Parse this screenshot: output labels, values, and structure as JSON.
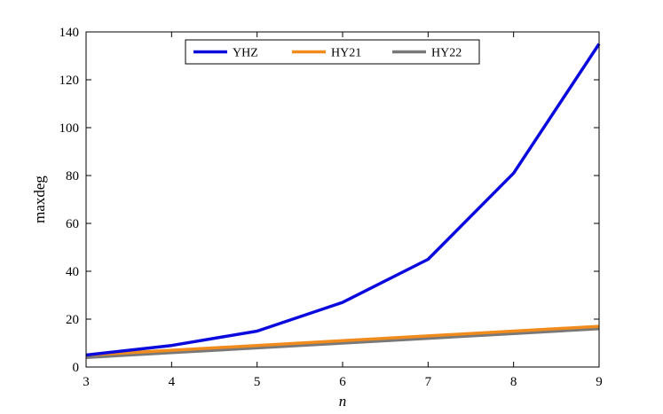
{
  "chart_data": {
    "type": "line",
    "xlabel": "n",
    "ylabel": "maxdeg",
    "xlim": [
      3,
      9
    ],
    "ylim": [
      0,
      140
    ],
    "xticks": [
      3,
      4,
      5,
      6,
      7,
      8,
      9
    ],
    "yticks": [
      0,
      20,
      40,
      60,
      80,
      100,
      120,
      140
    ],
    "grid": false,
    "legend_position": "top-center",
    "x": [
      3,
      4,
      5,
      6,
      7,
      8,
      9
    ],
    "series": [
      {
        "name": "YHZ",
        "color": "#0a0adc",
        "values": [
          5,
          9,
          15,
          27,
          45,
          81,
          135
        ]
      },
      {
        "name": "HY21",
        "color": "#f08c1e",
        "values": [
          5,
          7,
          9,
          11,
          13,
          15,
          17
        ]
      },
      {
        "name": "HY22",
        "color": "#787878",
        "values": [
          4,
          6,
          8,
          10,
          12,
          14,
          16
        ]
      }
    ]
  }
}
